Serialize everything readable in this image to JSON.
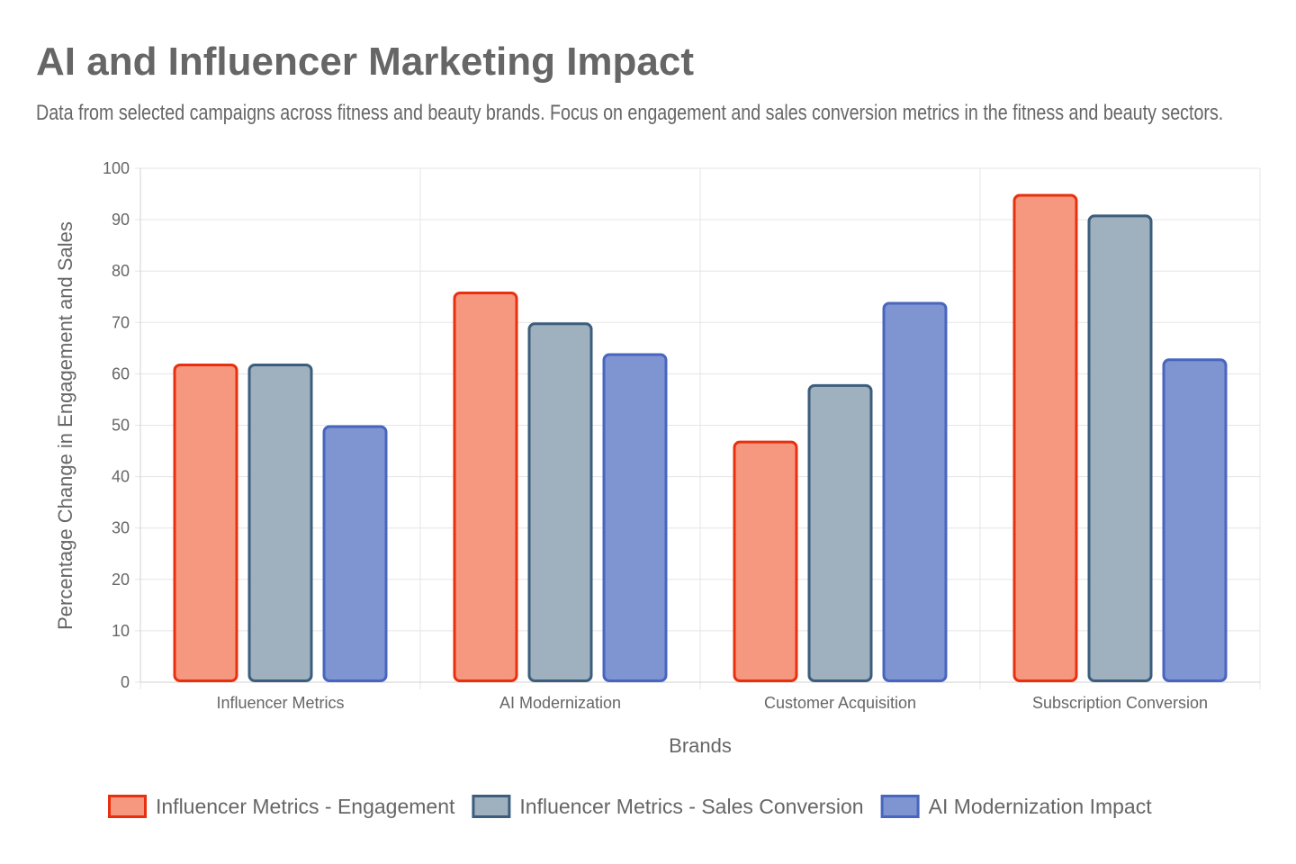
{
  "chart_data": {
    "type": "bar",
    "title": "AI and Influencer Marketing Impact",
    "subtitle": "Data from selected campaigns across fitness and beauty brands. Focus on engagement and sales conversion metrics in the fitness and beauty sectors.",
    "xlabel": "Brands",
    "ylabel": "Percentage Change in Engagement and Sales",
    "ylim": [
      0,
      100
    ],
    "yticks": [
      0,
      10,
      20,
      30,
      40,
      50,
      60,
      70,
      80,
      90,
      100
    ],
    "grid": true,
    "legend_position": "bottom",
    "categories": [
      "Influencer Metrics",
      "AI Modernization",
      "Customer Acquisition",
      "Subscription Conversion"
    ],
    "series": [
      {
        "name": "Influencer Metrics - Engagement",
        "values": [
          62,
          76,
          47,
          95
        ],
        "fill": "#f6977f",
        "border": "#e8300e"
      },
      {
        "name": "Influencer Metrics - Sales Conversion",
        "values": [
          62,
          70,
          58,
          91
        ],
        "fill": "#9fb0be",
        "border": "#3c5e7c"
      },
      {
        "name": "AI Modernization Impact",
        "values": [
          50,
          64,
          74,
          63
        ],
        "fill": "#7f95d1",
        "border": "#4865bf"
      }
    ]
  }
}
